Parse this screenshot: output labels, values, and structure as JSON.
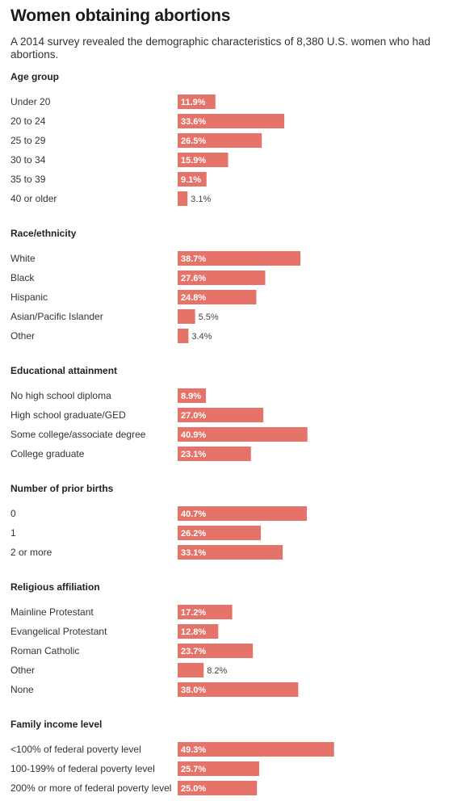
{
  "title": "Women obtaining abortions",
  "subtitle": "A 2014 survey revealed the demographic characteristics of 8,380 U.S. women who had abortions.",
  "colors": {
    "bar": "#e5736a",
    "value_inside": "#ffffff",
    "value_outside": "#444444"
  },
  "chart_data": {
    "type": "bar",
    "orientation": "horizontal",
    "unit": "%",
    "xlim": [
      0,
      50
    ],
    "grid": false,
    "legend": "none",
    "groups": [
      {
        "title": "Age group",
        "categories": [
          "Under 20",
          "20 to 24",
          "25 to 29",
          "30 to 34",
          "35 to 39",
          "40 or older"
        ],
        "values": [
          11.9,
          33.6,
          26.5,
          15.9,
          9.1,
          3.1
        ],
        "labels": [
          "11.9%",
          "33.6%",
          "26.5%",
          "15.9%",
          "9.1%",
          "3.1%"
        ]
      },
      {
        "title": "Race/ethnicity",
        "categories": [
          "White",
          "Black",
          "Hispanic",
          "Asian/Pacific Islander",
          "Other"
        ],
        "values": [
          38.7,
          27.6,
          24.8,
          5.5,
          3.4
        ],
        "labels": [
          "38.7%",
          "27.6%",
          "24.8%",
          "5.5%",
          "3.4%"
        ]
      },
      {
        "title": "Educational attainment",
        "categories": [
          "No high school diploma",
          "High school graduate/GED",
          "Some college/associate degree",
          "College graduate"
        ],
        "values": [
          8.9,
          27.0,
          40.9,
          23.1
        ],
        "labels": [
          "8.9%",
          "27.0%",
          "40.9%",
          "23.1%"
        ]
      },
      {
        "title": "Number of prior births",
        "categories": [
          "0",
          "1",
          "2 or more"
        ],
        "values": [
          40.7,
          26.2,
          33.1
        ],
        "labels": [
          "40.7%",
          "26.2%",
          "33.1%"
        ]
      },
      {
        "title": "Religious affiliation",
        "categories": [
          "Mainline Protestant",
          "Evangelical Protestant",
          "Roman Catholic",
          "Other",
          "None"
        ],
        "values": [
          17.2,
          12.8,
          23.7,
          8.2,
          38.0
        ],
        "labels": [
          "17.2%",
          "12.8%",
          "23.7%",
          "8.2%",
          "38.0%"
        ]
      },
      {
        "title": "Family income level",
        "categories": [
          "<100% of federal poverty level",
          "100-199% of federal poverty level",
          "200% or more of federal poverty level"
        ],
        "values": [
          49.3,
          25.7,
          25.0
        ],
        "labels": [
          "49.3%",
          "25.7%",
          "25.0%"
        ]
      }
    ]
  }
}
